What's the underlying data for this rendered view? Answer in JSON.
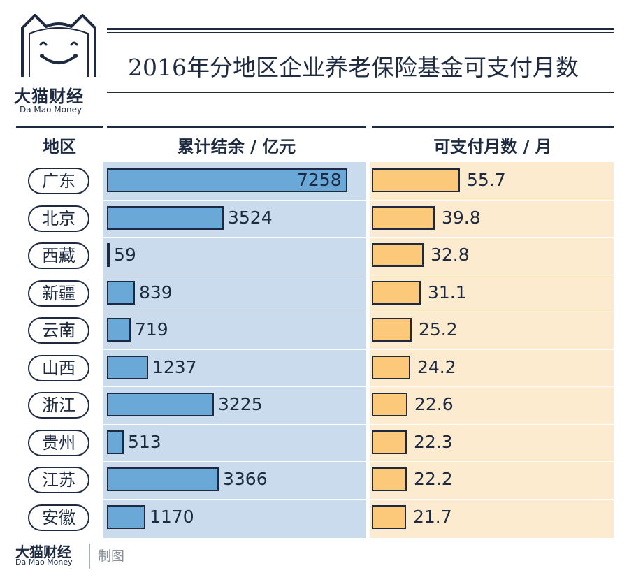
{
  "brand": {
    "name_cn": "大猫财经",
    "name_en": "Da Mao Money",
    "made_by": "制图"
  },
  "colors": {
    "navy": "#1e2a40",
    "bar_blue": "#6aa8d8",
    "bg_blue": "#c9dbec",
    "bar_orange": "#fcc87a",
    "bg_orange": "#fdebd0"
  },
  "chart_data": {
    "type": "table",
    "title": "2016年分地区企业养老保险基金可支付月数",
    "columns": [
      "地区",
      "累计结余 / 亿元",
      "可支付月数 / 月"
    ],
    "categories": [
      "广东",
      "北京",
      "西藏",
      "新疆",
      "云南",
      "山西",
      "浙江",
      "贵州",
      "江苏",
      "安徽"
    ],
    "series": [
      {
        "name": "累计结余 / 亿元",
        "values": [
          7258,
          3524,
          59,
          839,
          719,
          1237,
          3225,
          513,
          3366,
          1170
        ]
      },
      {
        "name": "可支付月数 / 月",
        "values": [
          55.7,
          39.8,
          32.8,
          31.1,
          25.2,
          24.2,
          22.6,
          22.3,
          22.2,
          21.7
        ]
      }
    ],
    "series_labels": [
      [
        "7258",
        "3524",
        "59",
        "839",
        "719",
        "1237",
        "3225",
        "513",
        "3366",
        "1170"
      ],
      [
        "55.7",
        "39.8",
        "32.8",
        "31.1",
        "25.2",
        "24.2",
        "22.6",
        "22.3",
        "22.2",
        "21.7"
      ]
    ],
    "xlim_balance": [
      0,
      7258
    ],
    "xlim_months": [
      0,
      55.7
    ]
  }
}
